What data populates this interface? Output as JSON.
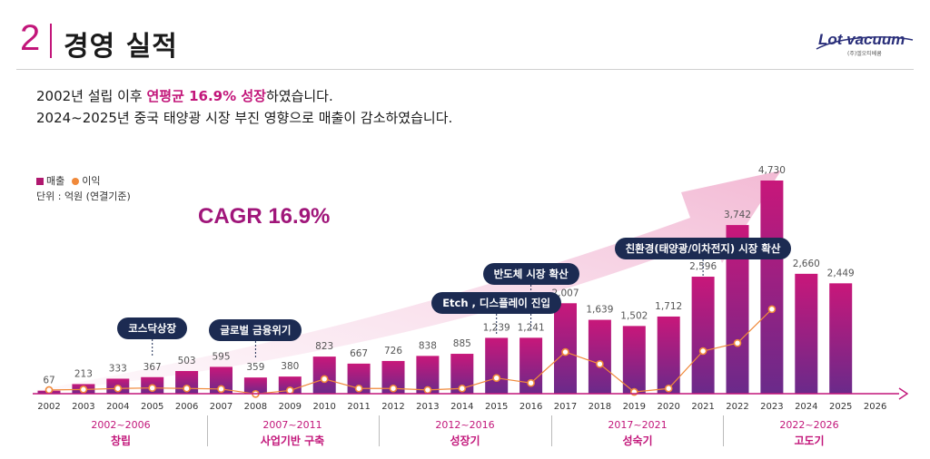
{
  "header": {
    "section_number": "2",
    "title": "경영 실적"
  },
  "logo": {
    "name": "Lot vacuum",
    "subtitle": "(주)엘오티베큠"
  },
  "description": {
    "line1_prefix": "2002년 설립 이후 ",
    "line1_highlight": "연평균 16.9% 성장",
    "line1_suffix": "하였습니다.",
    "line2": "2024~2025년 중국 태양광 시장 부진 영향으로 매출이 감소하였습니다."
  },
  "legend": {
    "sales": "매출",
    "profit": "이익"
  },
  "unit_label": "단위 : 억원 (연결기준)",
  "cagr_label": "CAGR 16.9%",
  "callouts": [
    {
      "text": "코스닥상장",
      "year": "2005"
    },
    {
      "text": "글로벌 금융위기",
      "year": "2008"
    },
    {
      "text": "Etch , 디스플레이 진입",
      "year": "2015"
    },
    {
      "text": "반도체 시장 확산",
      "year": "2016"
    },
    {
      "text": "친환경(태양광/이차전지) 시장 확산",
      "year": "2021"
    }
  ],
  "periods": [
    {
      "range": "2002~2006",
      "name": "창립"
    },
    {
      "range": "2007~2011",
      "name": "사업기반 구축"
    },
    {
      "range": "2012~2016",
      "name": "성장기"
    },
    {
      "range": "2017~2021",
      "name": "성숙기"
    },
    {
      "range": "2022~2026",
      "name": "고도기"
    }
  ],
  "colors": {
    "accent": "#c2167a",
    "bar_top": "#c8177a",
    "bar_bottom": "#6a2a8a",
    "profit": "#f0893a",
    "callout_bg": "#1c2b52"
  },
  "chart_data": {
    "type": "bar",
    "categories": [
      "2002",
      "2003",
      "2004",
      "2005",
      "2006",
      "2007",
      "2008",
      "2009",
      "2010",
      "2011",
      "2012",
      "2013",
      "2014",
      "2015",
      "2016",
      "2017",
      "2018",
      "2019",
      "2020",
      "2021",
      "2022",
      "2023",
      "2024",
      "2025",
      "2026"
    ],
    "series": [
      {
        "name": "매출",
        "values": [
          67,
          213,
          333,
          367,
          503,
          595,
          359,
          380,
          823,
          667,
          726,
          838,
          885,
          1239,
          1241,
          2007,
          1639,
          1502,
          1712,
          2596,
          3742,
          4730,
          2660,
          2449,
          null
        ]
      },
      {
        "name": "이익",
        "values": [
          10,
          15,
          25,
          30,
          25,
          20,
          -30,
          5,
          120,
          25,
          25,
          10,
          25,
          130,
          80,
          390,
          270,
          -10,
          25,
          400,
          480,
          820,
          null,
          null,
          null
        ]
      }
    ],
    "value_labels": [
      "67",
      "213",
      "333",
      "367",
      "503",
      "595",
      "359",
      "380",
      "823",
      "667",
      "726",
      "838",
      "885",
      "1,239",
      "1,241",
      "2,007",
      "1,639",
      "1,502",
      "1,712",
      "2,596",
      "3,742",
      "4,730",
      "2,660",
      "2,449",
      ""
    ],
    "ylim": [
      0,
      5000
    ]
  }
}
